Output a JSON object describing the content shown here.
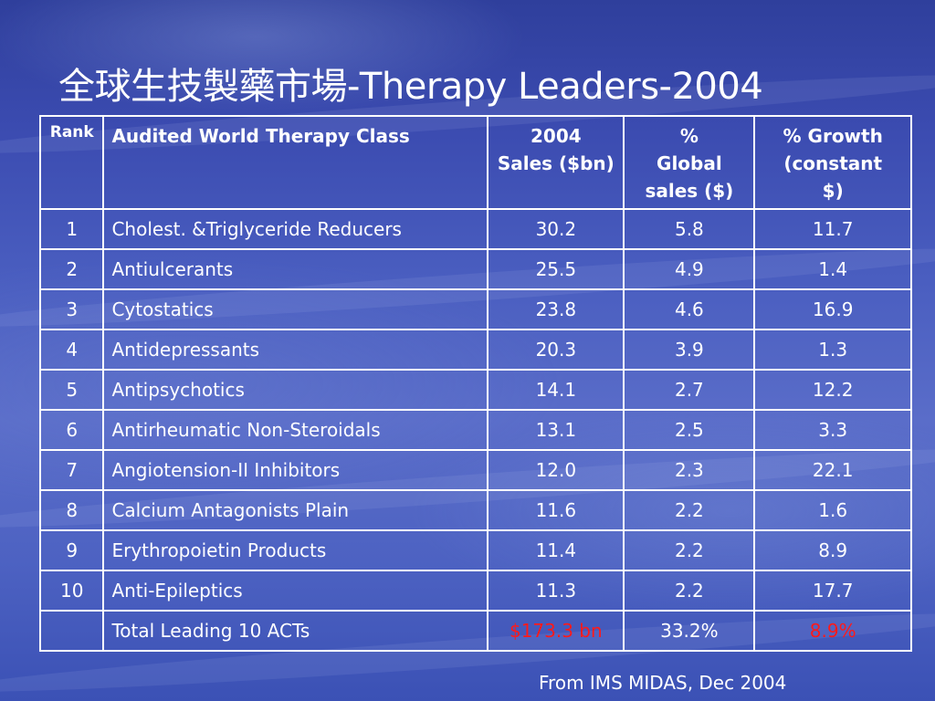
{
  "slide": {
    "title": "全球生技製藥市場-Therapy Leaders-2004",
    "source": "From IMS MIDAS, Dec 2004"
  },
  "table": {
    "headers": {
      "rank": "Rank",
      "therapy_class": "Audited World Therapy Class",
      "sales_line1": "2004",
      "sales_line2": "Sales ($bn)",
      "global_line1": "%",
      "global_line2": "Global",
      "global_line3": "sales ($)",
      "growth_line1": "% Growth",
      "growth_line2": "(constant",
      "growth_line3": "$)"
    },
    "rows": [
      {
        "rank": "1",
        "therapy_class": "Cholest. &Triglyceride Reducers",
        "sales": "30.2",
        "global": "5.8",
        "growth": "11.7"
      },
      {
        "rank": "2",
        "therapy_class": "Antiulcerants",
        "sales": "25.5",
        "global": "4.9",
        "growth": "1.4"
      },
      {
        "rank": "3",
        "therapy_class": "Cytostatics",
        "sales": "23.8",
        "global": "4.6",
        "growth": "16.9"
      },
      {
        "rank": "4",
        "therapy_class": "Antidepressants",
        "sales": "20.3",
        "global": "3.9",
        "growth": "1.3"
      },
      {
        "rank": "5",
        "therapy_class": "Antipsychotics",
        "sales": "14.1",
        "global": "2.7",
        "growth": "12.2"
      },
      {
        "rank": "6",
        "therapy_class": "Antirheumatic Non-Steroidals",
        "sales": "13.1",
        "global": "2.5",
        "growth": "3.3"
      },
      {
        "rank": "7",
        "therapy_class": "Angiotension-II Inhibitors",
        "sales": "12.0",
        "global": "2.3",
        "growth": "22.1"
      },
      {
        "rank": "8",
        "therapy_class": "Calcium Antagonists Plain",
        "sales": "11.6",
        "global": "2.2",
        "growth": "1.6"
      },
      {
        "rank": "9",
        "therapy_class": "Erythropoietin Products",
        "sales": "11.4",
        "global": "2.2",
        "growth": "8.9"
      },
      {
        "rank": "10",
        "therapy_class": "Anti-Epileptics",
        "sales": "11.3",
        "global": "2.2",
        "growth": "17.7"
      }
    ],
    "total": {
      "rank": "",
      "therapy_class": "Total Leading 10 ACTs",
      "sales": "$173.3 bn",
      "global": "33.2%",
      "growth": "8.9%"
    }
  },
  "colors": {
    "text": "#ffffff",
    "highlight": "#ff1a1a",
    "background": "#4a5ec0"
  }
}
